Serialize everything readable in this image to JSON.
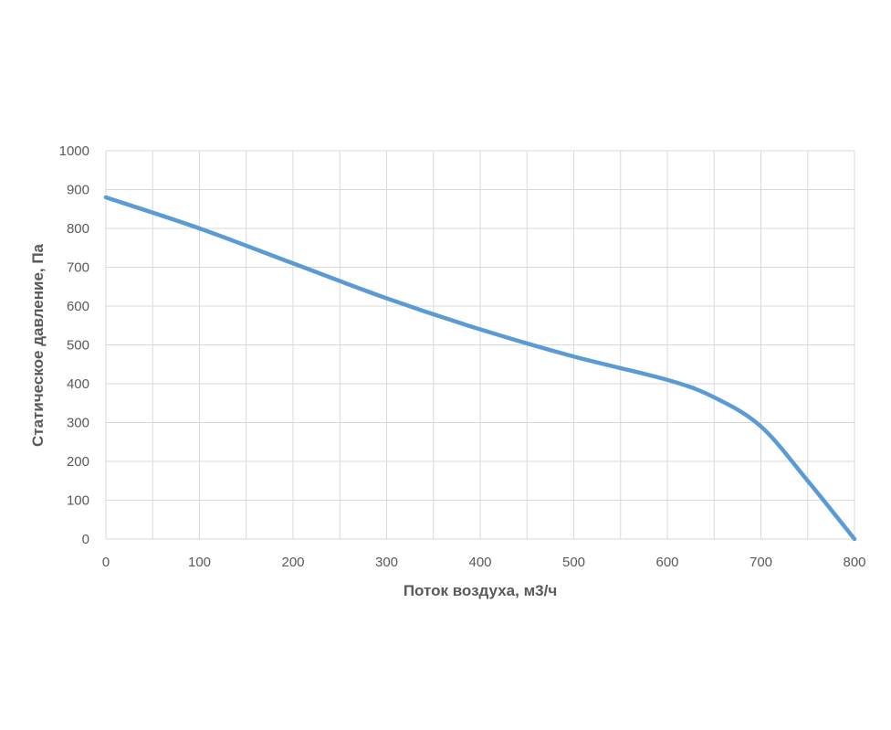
{
  "chart_data": {
    "type": "line",
    "title": "",
    "xlabel": "Поток воздуха, м3/ч",
    "ylabel": "Статическое давление, Па",
    "xlim": [
      0,
      800
    ],
    "ylim": [
      0,
      1000
    ],
    "x_ticks": [
      0,
      100,
      200,
      300,
      400,
      500,
      600,
      700,
      800
    ],
    "y_ticks": [
      0,
      100,
      200,
      300,
      400,
      500,
      600,
      700,
      800,
      900,
      1000
    ],
    "x_minor_step": 50,
    "grid": true,
    "legend": "none",
    "series": [
      {
        "color": "#5b9bd5",
        "x": [
          0,
          100,
          200,
          300,
          400,
          500,
          600,
          650,
          700,
          750,
          800
        ],
        "y": [
          880,
          800,
          710,
          620,
          540,
          470,
          410,
          365,
          290,
          150,
          0
        ]
      }
    ]
  }
}
